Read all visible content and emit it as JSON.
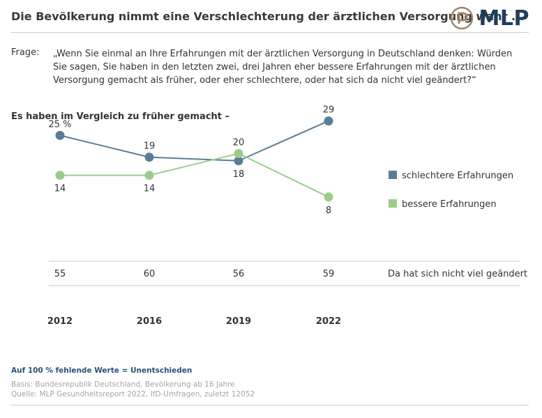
{
  "header": {
    "title": "Die Bevölkerung nimmt eine Verschlechterung der ärztlichen Versorgung wahr ...",
    "brand": "MLP",
    "brand_color": "#1e3e5c",
    "brand_icon_color": "#a08462"
  },
  "question": {
    "label": "Frage:",
    "text": "„Wenn Sie einmal an Ihre Erfahrungen mit der ärztlichen Versorgung in Deutschland denken: Würden Sie sagen, Sie haben in den letzten zwei, drei Jahren eher bessere Erfahrungen mit der ärztlichen Versorgung gemacht als früher, oder eher schlechtere, oder hat sich da nicht viel geändert?“"
  },
  "subheading": "Es haben im Vergleich zu früher gemacht –",
  "chart_data": {
    "type": "line",
    "x": [
      "2012",
      "2016",
      "2019",
      "2022"
    ],
    "series": [
      {
        "name": "schlechtere Erfahrungen",
        "color": "#5b7d96",
        "values": [
          25,
          19,
          18,
          29
        ],
        "labels": [
          "25 %",
          "19",
          "18",
          "29"
        ]
      },
      {
        "name": "bessere Erfahrungen",
        "color": "#9acd8c",
        "values": [
          14,
          14,
          20,
          8
        ],
        "labels": [
          "14",
          "14",
          "20",
          "8"
        ]
      }
    ],
    "table_row": {
      "label": "Da hat sich nicht viel geändert",
      "values": [
        "55",
        "60",
        "56",
        "59"
      ]
    },
    "legend": "right",
    "grid": false
  },
  "footer": {
    "note": "Auf 100 % fehlende Werte = Unentschieden",
    "basis": "Basis: Bundesrepublik Deutschland, Bevölkerung ab 16 Jahre",
    "source": "Quelle: MLP Gesundheitsreport 2022, IfD-Umfragen, zuletzt 12052"
  }
}
